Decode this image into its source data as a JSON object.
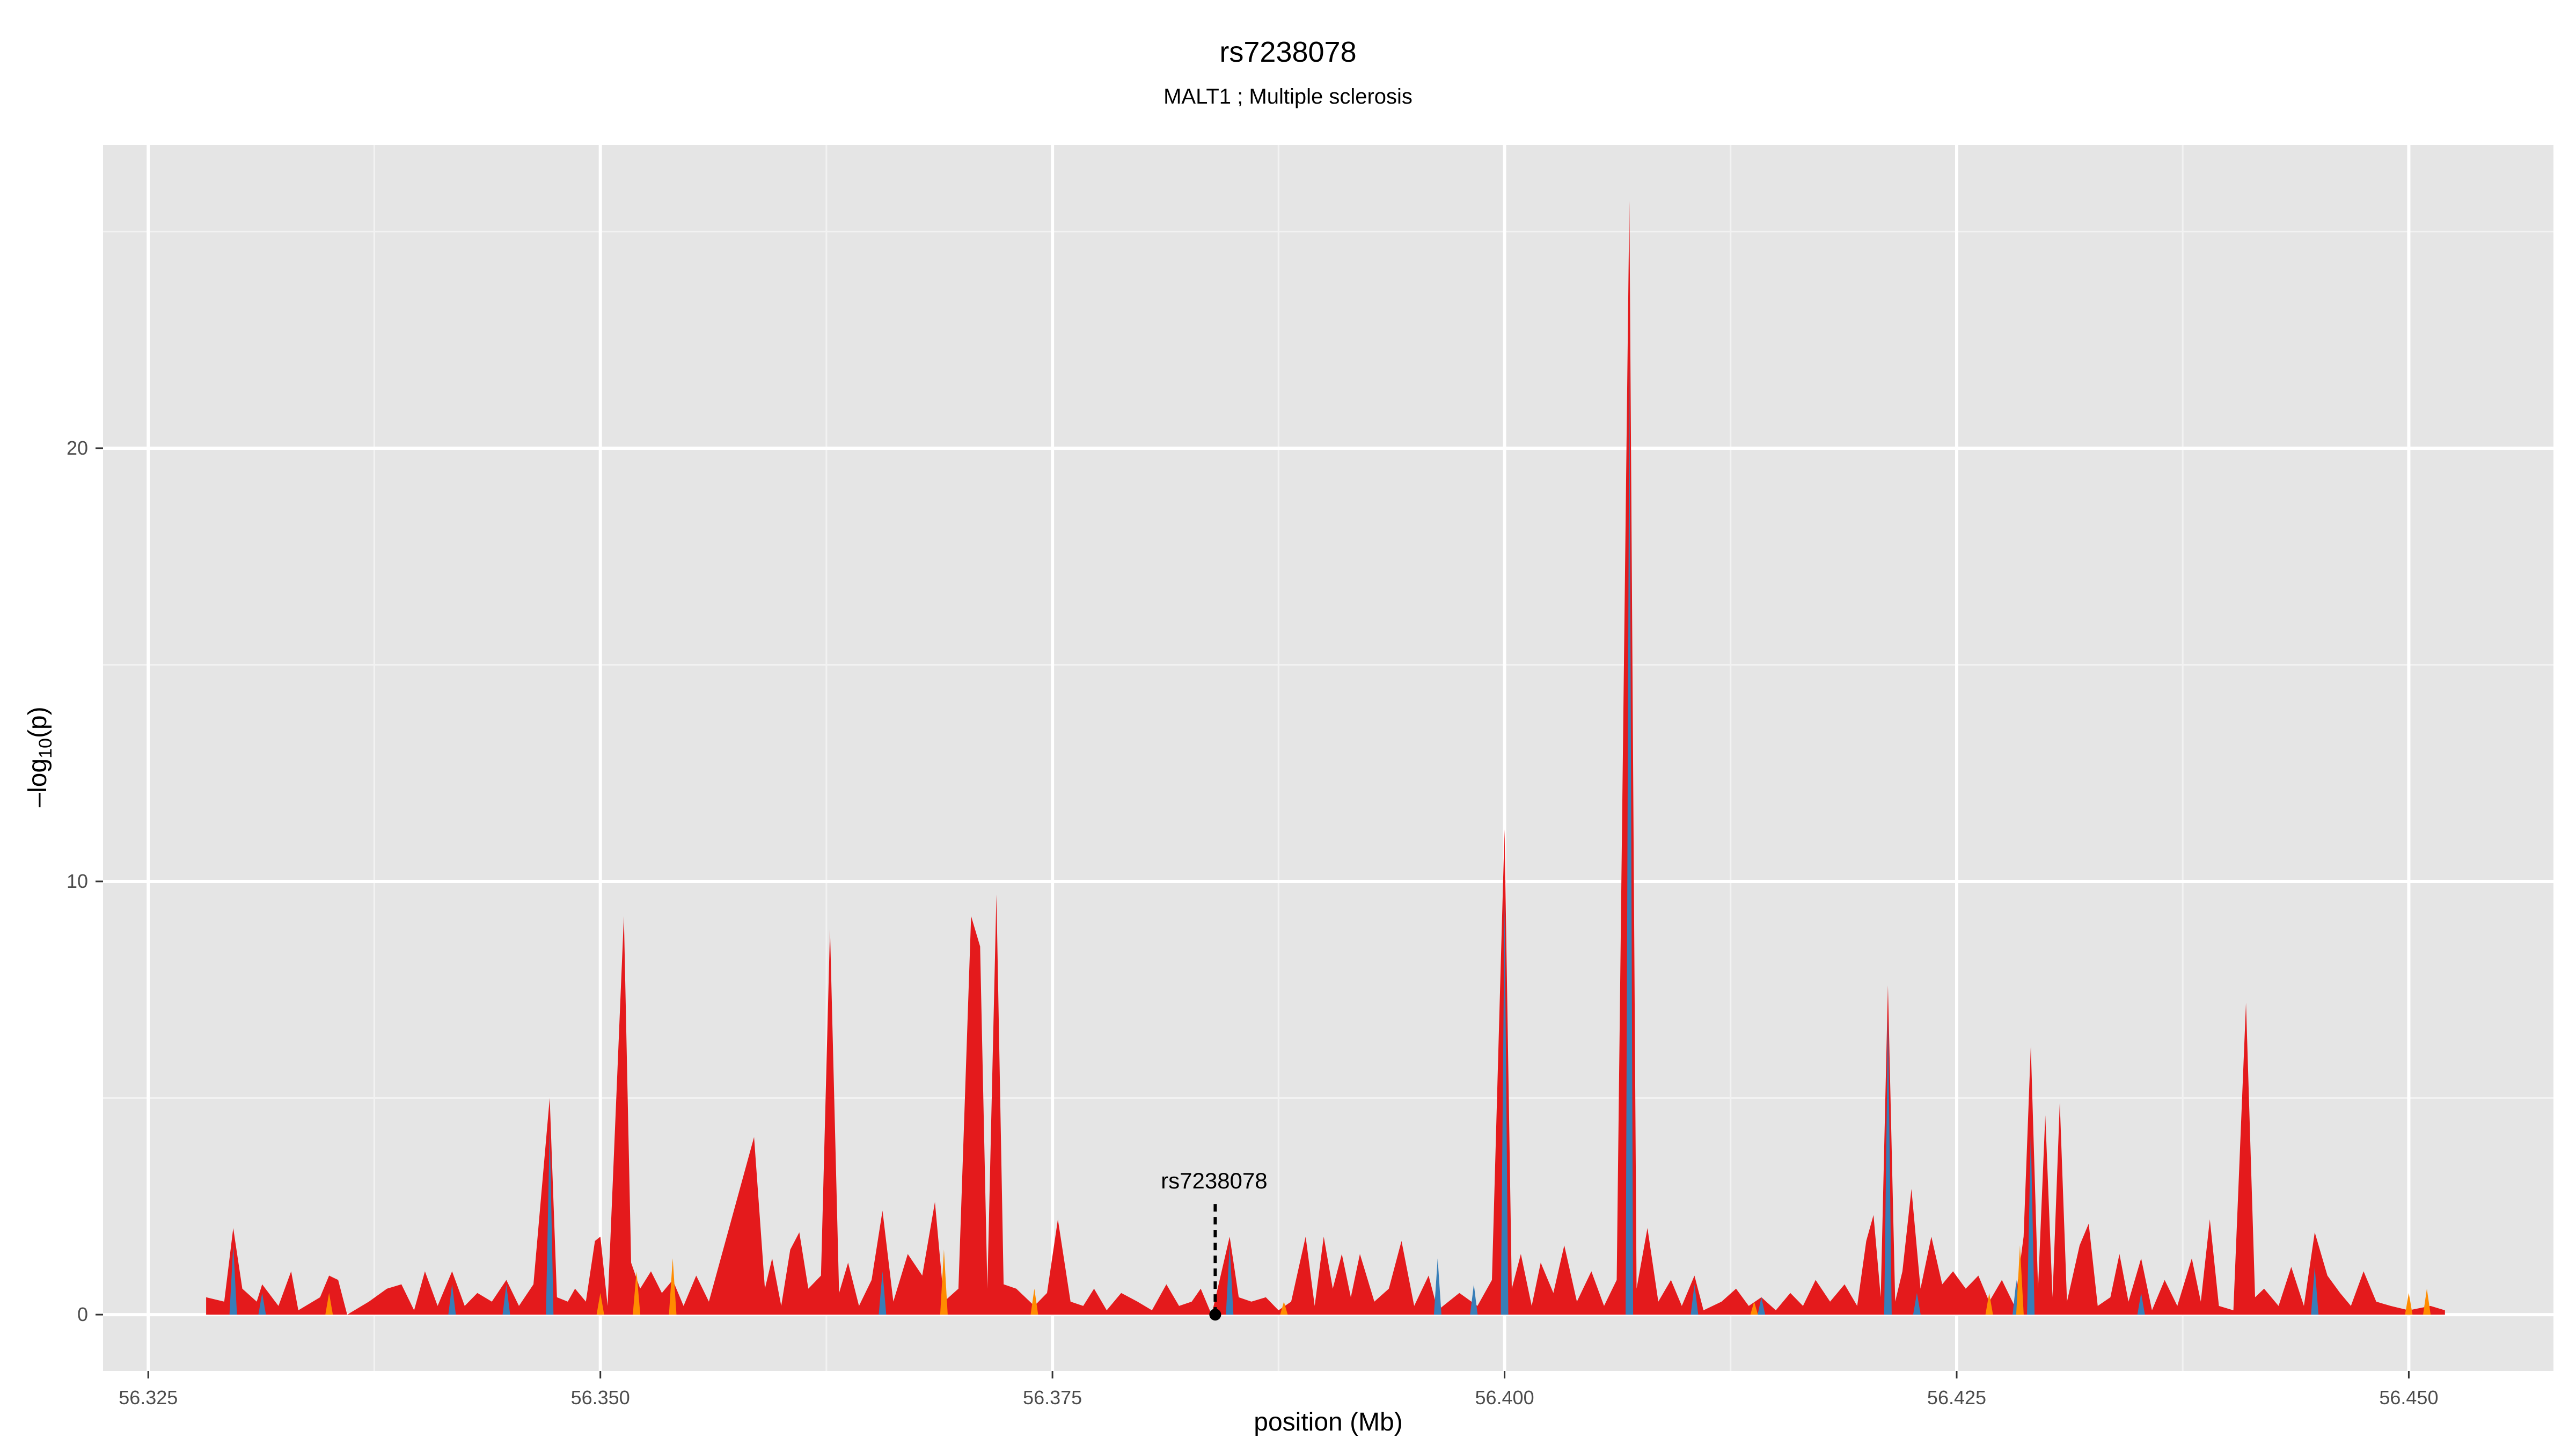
{
  "chart_data": {
    "type": "area",
    "title": "rs7238078",
    "subtitle": "MALT1 ; Multiple sclerosis",
    "xlabel": "position (Mb)",
    "ylabel": "-log10(p)",
    "ylabel_parts": {
      "prefix": "–log",
      "sub": "10",
      "suffix": "(p)"
    },
    "xlim": [
      56.3225,
      56.458
    ],
    "ylim": [
      -1.3,
      27.0
    ],
    "x_ticks": [
      56.325,
      56.35,
      56.375,
      56.4,
      56.425,
      56.45
    ],
    "x_tick_labels": [
      "56.325",
      "56.350",
      "56.375",
      "56.400",
      "56.425",
      "56.450"
    ],
    "y_ticks": [
      0,
      10,
      20
    ],
    "y_tick_labels": [
      "0",
      "10",
      "20"
    ],
    "grid": true,
    "colors": {
      "panel_background": "#e5e5e5",
      "grid_major": "#ffffff",
      "grid_minor": "#f2f2f2",
      "red": "#e41a1c",
      "blue": "#377eb8",
      "orange": "#ff8c00"
    },
    "annotation": {
      "label": "rs7238078",
      "x": 56.384,
      "y": 0,
      "line_top": 2.6
    },
    "series": [
      {
        "color": "red",
        "points": [
          [
            56.3282,
            0.4
          ],
          [
            56.3292,
            0.3
          ],
          [
            56.3297,
            2.0
          ],
          [
            56.3302,
            0.6
          ],
          [
            56.331,
            0.3
          ],
          [
            56.3313,
            0.7
          ],
          [
            56.3322,
            0.2
          ],
          [
            56.3329,
            1.0
          ],
          [
            56.3333,
            0.1
          ],
          [
            56.3345,
            0.4
          ],
          [
            56.335,
            0.9
          ],
          [
            56.3355,
            0.8
          ],
          [
            56.336,
            0.0
          ],
          [
            56.3372,
            0.3
          ],
          [
            56.3382,
            0.6
          ],
          [
            56.339,
            0.7
          ],
          [
            56.3397,
            0.1
          ],
          [
            56.3403,
            1.0
          ],
          [
            56.341,
            0.2
          ],
          [
            56.3418,
            1.0
          ],
          [
            56.3425,
            0.2
          ],
          [
            56.3432,
            0.5
          ],
          [
            56.344,
            0.3
          ],
          [
            56.3448,
            0.8
          ],
          [
            56.3455,
            0.2
          ],
          [
            56.3463,
            0.7
          ],
          [
            56.3472,
            5.0
          ],
          [
            56.3476,
            0.4
          ],
          [
            56.3482,
            0.3
          ],
          [
            56.3486,
            0.6
          ],
          [
            56.3492,
            0.3
          ],
          [
            56.3497,
            1.7
          ],
          [
            56.35,
            1.8
          ],
          [
            56.3504,
            0.2
          ],
          [
            56.3513,
            9.2
          ],
          [
            56.3517,
            1.2
          ],
          [
            56.3522,
            0.6
          ],
          [
            56.3528,
            1.0
          ],
          [
            56.3534,
            0.5
          ],
          [
            56.354,
            0.8
          ],
          [
            56.3546,
            0.2
          ],
          [
            56.3553,
            0.9
          ],
          [
            56.356,
            0.3
          ],
          [
            56.3585,
            4.1
          ],
          [
            56.3591,
            0.6
          ],
          [
            56.3595,
            1.3
          ],
          [
            56.36,
            0.2
          ],
          [
            56.3605,
            1.5
          ],
          [
            56.361,
            1.9
          ],
          [
            56.3615,
            0.6
          ],
          [
            56.3622,
            0.9
          ],
          [
            56.3627,
            8.9
          ],
          [
            56.3632,
            0.5
          ],
          [
            56.3637,
            1.2
          ],
          [
            56.3643,
            0.2
          ],
          [
            56.365,
            0.8
          ],
          [
            56.3656,
            2.4
          ],
          [
            56.3662,
            0.3
          ],
          [
            56.367,
            1.4
          ],
          [
            56.3678,
            0.9
          ],
          [
            56.3685,
            2.6
          ],
          [
            56.369,
            0.3
          ],
          [
            56.3698,
            0.6
          ],
          [
            56.3705,
            9.2
          ],
          [
            56.371,
            8.5
          ],
          [
            56.3714,
            0.6
          ],
          [
            56.3719,
            9.7
          ],
          [
            56.3723,
            0.7
          ],
          [
            56.373,
            0.6
          ],
          [
            56.374,
            0.2
          ],
          [
            56.3747,
            0.5
          ],
          [
            56.3753,
            2.2
          ],
          [
            56.376,
            0.3
          ],
          [
            56.3767,
            0.2
          ],
          [
            56.3773,
            0.6
          ],
          [
            56.378,
            0.1
          ],
          [
            56.3788,
            0.5
          ],
          [
            56.3797,
            0.3
          ],
          [
            56.3805,
            0.1
          ],
          [
            56.3813,
            0.7
          ],
          [
            56.382,
            0.2
          ],
          [
            56.3827,
            0.3
          ],
          [
            56.3832,
            0.6
          ],
          [
            56.3838,
            0.0
          ],
          [
            56.3848,
            1.8
          ],
          [
            56.3853,
            0.4
          ],
          [
            56.386,
            0.3
          ],
          [
            56.3868,
            0.4
          ],
          [
            56.3875,
            0.1
          ],
          [
            56.3882,
            0.3
          ],
          [
            56.389,
            1.8
          ],
          [
            56.3895,
            0.2
          ],
          [
            56.39,
            1.8
          ],
          [
            56.3905,
            0.6
          ],
          [
            56.391,
            1.4
          ],
          [
            56.3915,
            0.4
          ],
          [
            56.392,
            1.4
          ],
          [
            56.3928,
            0.3
          ],
          [
            56.3936,
            0.6
          ],
          [
            56.3943,
            1.7
          ],
          [
            56.395,
            0.2
          ],
          [
            56.3958,
            0.9
          ],
          [
            56.3963,
            0.1
          ],
          [
            56.3975,
            0.5
          ],
          [
            56.3985,
            0.2
          ],
          [
            56.3993,
            0.8
          ],
          [
            56.4,
            11.2
          ],
          [
            56.4004,
            0.6
          ],
          [
            56.4009,
            1.4
          ],
          [
            56.4015,
            0.2
          ],
          [
            56.402,
            1.2
          ],
          [
            56.4027,
            0.5
          ],
          [
            56.4033,
            1.6
          ],
          [
            56.404,
            0.3
          ],
          [
            56.4048,
            1.0
          ],
          [
            56.4055,
            0.2
          ],
          [
            56.4062,
            0.8
          ],
          [
            56.4069,
            25.7
          ],
          [
            56.4073,
            0.6
          ],
          [
            56.4079,
            2.0
          ],
          [
            56.4085,
            0.3
          ],
          [
            56.4092,
            0.8
          ],
          [
            56.4098,
            0.2
          ],
          [
            56.4105,
            0.9
          ],
          [
            56.411,
            0.1
          ],
          [
            56.412,
            0.3
          ],
          [
            56.4128,
            0.6
          ],
          [
            56.4135,
            0.2
          ],
          [
            56.4142,
            0.4
          ],
          [
            56.415,
            0.1
          ],
          [
            56.4158,
            0.5
          ],
          [
            56.4165,
            0.2
          ],
          [
            56.4172,
            0.8
          ],
          [
            56.418,
            0.3
          ],
          [
            56.4188,
            0.7
          ],
          [
            56.4195,
            0.2
          ],
          [
            56.42,
            1.7
          ],
          [
            56.4204,
            2.3
          ],
          [
            56.4208,
            0.4
          ],
          [
            56.4212,
            7.6
          ],
          [
            56.4216,
            0.3
          ],
          [
            56.422,
            1.0
          ],
          [
            56.4225,
            2.9
          ],
          [
            56.423,
            0.6
          ],
          [
            56.4236,
            1.8
          ],
          [
            56.4242,
            0.7
          ],
          [
            56.4248,
            1.0
          ],
          [
            56.4255,
            0.6
          ],
          [
            56.4262,
            0.9
          ],
          [
            56.4268,
            0.3
          ],
          [
            56.4275,
            0.8
          ],
          [
            56.4282,
            0.2
          ],
          [
            56.4287,
            1.8
          ],
          [
            56.4291,
            6.2
          ],
          [
            56.4295,
            0.6
          ],
          [
            56.4299,
            4.6
          ],
          [
            56.4303,
            0.4
          ],
          [
            56.4307,
            4.9
          ],
          [
            56.4311,
            0.3
          ],
          [
            56.4318,
            1.6
          ],
          [
            56.4323,
            2.1
          ],
          [
            56.4328,
            0.2
          ],
          [
            56.4335,
            0.4
          ],
          [
            56.434,
            1.4
          ],
          [
            56.4345,
            0.3
          ],
          [
            56.4352,
            1.3
          ],
          [
            56.4358,
            0.1
          ],
          [
            56.4365,
            0.8
          ],
          [
            56.4372,
            0.2
          ],
          [
            56.438,
            1.3
          ],
          [
            56.4385,
            0.3
          ],
          [
            56.439,
            2.2
          ],
          [
            56.4395,
            0.2
          ],
          [
            56.4403,
            0.1
          ],
          [
            56.441,
            7.2
          ],
          [
            56.4415,
            0.4
          ],
          [
            56.442,
            0.6
          ],
          [
            56.4428,
            0.2
          ],
          [
            56.4435,
            1.1
          ],
          [
            56.4442,
            0.2
          ],
          [
            56.4448,
            1.9
          ],
          [
            56.4455,
            0.9
          ],
          [
            56.4462,
            0.5
          ],
          [
            56.4468,
            0.2
          ],
          [
            56.4475,
            1.0
          ],
          [
            56.4482,
            0.3
          ],
          [
            56.449,
            0.2
          ],
          [
            56.45,
            0.1
          ],
          [
            56.4512,
            0.2
          ],
          [
            56.452,
            0.1
          ]
        ]
      },
      {
        "color": "blue",
        "points": [
          [
            56.3297,
            1.6
          ],
          [
            56.3313,
            0.5
          ],
          [
            56.3418,
            0.7
          ],
          [
            56.3448,
            0.7
          ],
          [
            56.3472,
            4.3
          ],
          [
            56.3656,
            1.0
          ],
          [
            56.3848,
            1.6
          ],
          [
            56.3963,
            1.3
          ],
          [
            56.3983,
            0.7
          ],
          [
            56.4,
            9.5
          ],
          [
            56.4069,
            22.0
          ],
          [
            56.4105,
            0.7
          ],
          [
            56.4142,
            0.4
          ],
          [
            56.4212,
            6.9
          ],
          [
            56.4228,
            0.5
          ],
          [
            56.4283,
            0.8
          ],
          [
            56.4291,
            4.2
          ],
          [
            56.4352,
            0.5
          ],
          [
            56.4448,
            1.1
          ]
        ]
      },
      {
        "color": "orange",
        "points": [
          [
            56.335,
            0.5
          ],
          [
            56.35,
            0.5
          ],
          [
            56.352,
            1.0
          ],
          [
            56.354,
            1.3
          ],
          [
            56.369,
            1.5
          ],
          [
            56.374,
            0.6
          ],
          [
            56.3878,
            0.3
          ],
          [
            56.4138,
            0.3
          ],
          [
            56.4268,
            0.5
          ],
          [
            56.4285,
            1.6
          ],
          [
            56.45,
            0.5
          ],
          [
            56.451,
            0.6
          ]
        ]
      }
    ]
  }
}
